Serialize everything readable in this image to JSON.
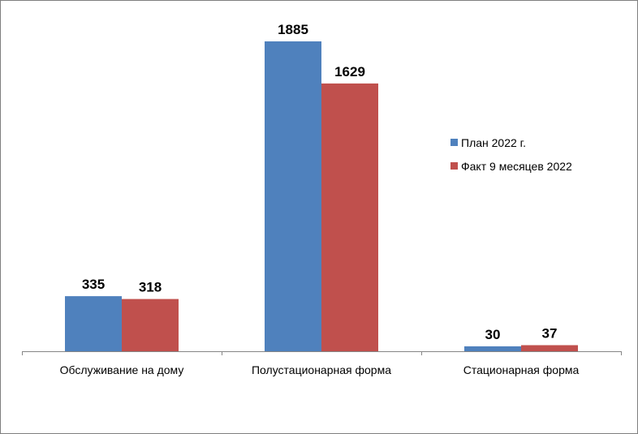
{
  "chart_data": {
    "type": "bar",
    "categories": [
      "Обслуживание на дому",
      "Полустационарная форма",
      "Стационарная форма"
    ],
    "series": [
      {
        "name": "План 2022 г.",
        "values": [
          335,
          1885,
          30
        ],
        "color": "#4f81bd"
      },
      {
        "name": "Факт 9 месяцев 2022",
        "values": [
          318,
          1629,
          37
        ],
        "color": "#c0504d"
      }
    ],
    "ylim": [
      0,
      1885
    ],
    "grid": false,
    "legend_position": "right",
    "data_labels": true
  }
}
